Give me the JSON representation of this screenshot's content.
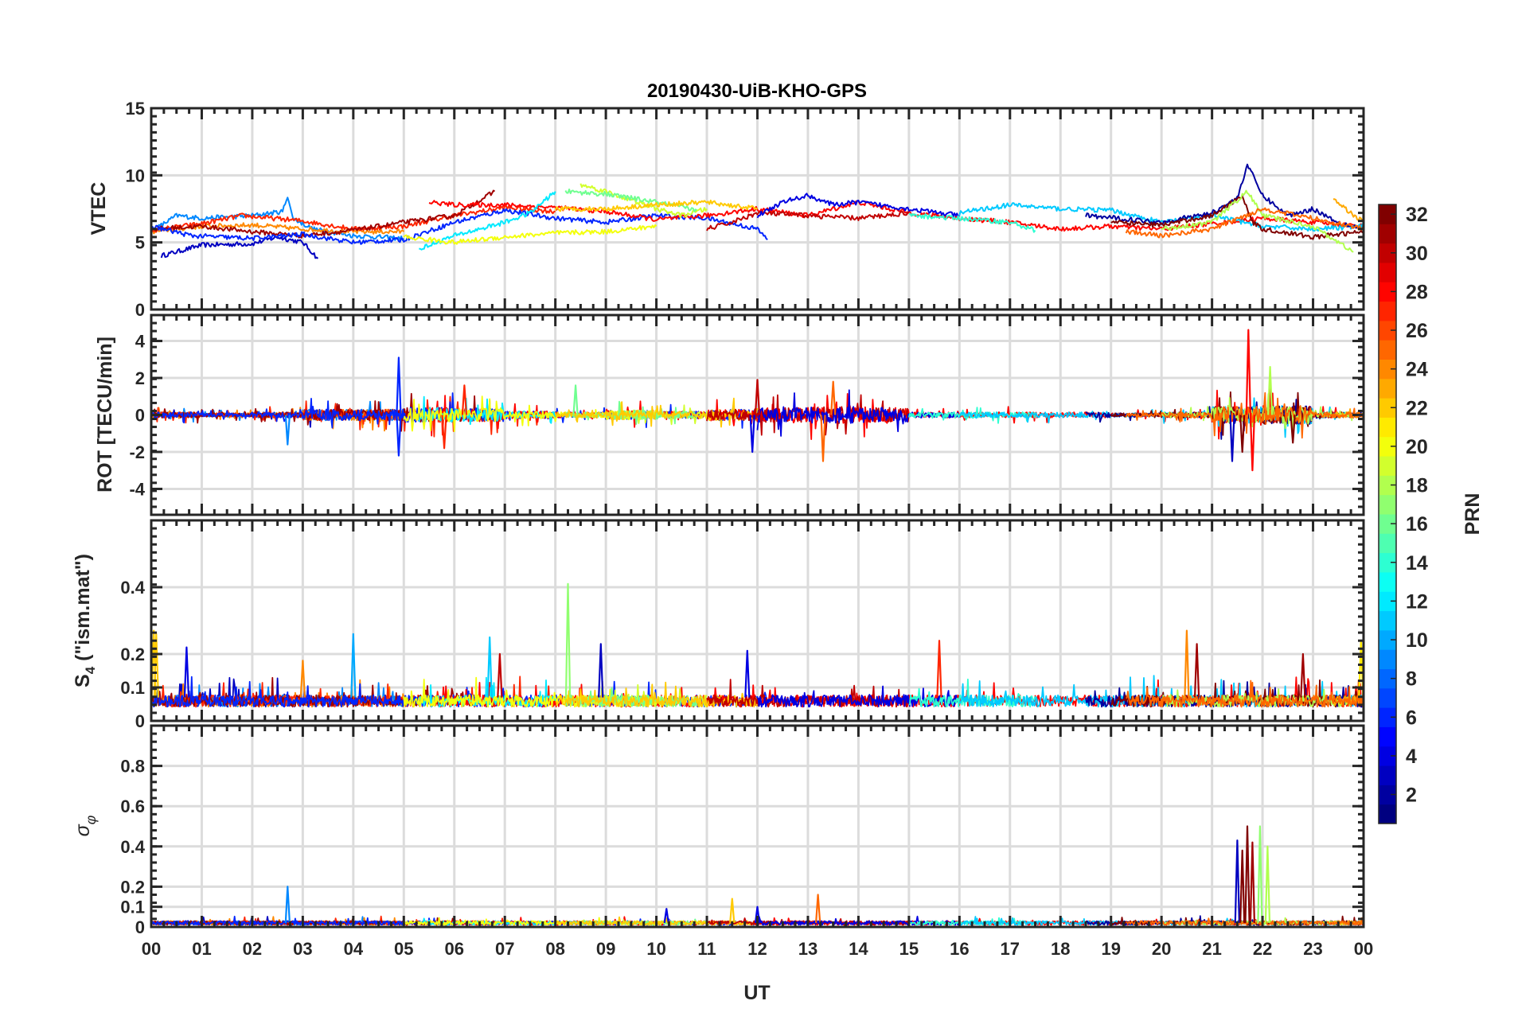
{
  "chart_data": {
    "type": "line",
    "title": "20190430-UiB-KHO-GPS",
    "xlabel": "UT",
    "xlim": [
      0,
      24
    ],
    "xtick_labels": [
      "00",
      "01",
      "02",
      "03",
      "04",
      "05",
      "06",
      "07",
      "08",
      "09",
      "10",
      "11",
      "12",
      "13",
      "14",
      "15",
      "16",
      "17",
      "18",
      "19",
      "20",
      "21",
      "22",
      "23",
      "00"
    ],
    "grid": true,
    "colorbar": {
      "label": "PRN",
      "range": [
        1,
        32
      ],
      "ticks": [
        "2",
        "4",
        "6",
        "8",
        "10",
        "12",
        "14",
        "16",
        "18",
        "20",
        "22",
        "24",
        "26",
        "28",
        "30",
        "32"
      ],
      "colormap": "jet",
      "placement": "right"
    },
    "panels": [
      {
        "id": "vtec",
        "ylabel": "VTEC",
        "ylim": [
          0,
          15
        ],
        "yticks": [
          0,
          5,
          10,
          15
        ],
        "ytick_labels": [
          "0",
          "5",
          "10",
          "15"
        ],
        "tracks": [
          {
            "prn": 3,
            "points": [
              [
                0.2,
                4.0
              ],
              [
                1,
                4.8
              ],
              [
                2,
                4.9
              ],
              [
                2.5,
                5.4
              ],
              [
                3,
                5.0
              ],
              [
                3.3,
                3.8
              ]
            ]
          },
          {
            "prn": 9,
            "points": [
              [
                0,
                5.8
              ],
              [
                0.5,
                7.0
              ],
              [
                1,
                6.8
              ],
              [
                2,
                7.0
              ],
              [
                2.6,
                7.3
              ],
              [
                2.7,
                8.5
              ],
              [
                2.8,
                6.8
              ],
              [
                3.2,
                6.0
              ],
              [
                4,
                5.5
              ],
              [
                5,
                5.3
              ]
            ]
          },
          {
            "prn": 24,
            "points": [
              [
                0,
                5.8
              ],
              [
                1,
                6.2
              ],
              [
                2,
                6.3
              ],
              [
                3,
                6.0
              ],
              [
                4,
                5.8
              ],
              [
                5,
                5.8
              ]
            ]
          },
          {
            "prn": 27,
            "points": [
              [
                0,
                5.9
              ],
              [
                1,
                6.4
              ],
              [
                1.8,
                7.0
              ],
              [
                3,
                6.6
              ],
              [
                4,
                6.0
              ],
              [
                5,
                6.2
              ],
              [
                6,
                7.0
              ],
              [
                7,
                7.6
              ],
              [
                8,
                7.3
              ]
            ]
          },
          {
            "prn": 31,
            "points": [
              [
                0,
                6.0
              ],
              [
                1,
                6.2
              ],
              [
                2,
                5.8
              ],
              [
                3,
                5.5
              ],
              [
                4,
                5.9
              ],
              [
                5,
                6.5
              ],
              [
                6,
                7.0
              ],
              [
                6.8,
                8.8
              ]
            ]
          },
          {
            "prn": 6,
            "points": [
              [
                0,
                6.2
              ],
              [
                0.8,
                5.5
              ],
              [
                2,
                5.3
              ],
              [
                3,
                5.6
              ],
              [
                4,
                5.0
              ],
              [
                5,
                5.2
              ],
              [
                6,
                6.5
              ],
              [
                7,
                7.4
              ],
              [
                8,
                6.8
              ],
              [
                9,
                6.5
              ],
              [
                10,
                7.0
              ],
              [
                11,
                6.8
              ],
              [
                12,
                6.0
              ],
              [
                12.2,
                5.2
              ]
            ]
          },
          {
            "prn": 28,
            "points": [
              [
                5.5,
                8.0
              ],
              [
                6,
                7.8
              ],
              [
                7,
                7.8
              ],
              [
                8,
                7.6
              ],
              [
                9,
                7.3
              ],
              [
                10,
                6.7
              ],
              [
                11,
                7.0
              ],
              [
                12,
                7.5
              ],
              [
                13,
                7.0
              ],
              [
                14,
                8.0
              ],
              [
                15,
                7.2
              ],
              [
                16,
                6.8
              ],
              [
                17,
                6.5
              ],
              [
                18,
                6.0
              ],
              [
                19,
                6.2
              ],
              [
                20,
                6.0
              ],
              [
                21,
                6.4
              ],
              [
                22,
                6.8
              ],
              [
                23,
                6.5
              ],
              [
                24,
                6.2
              ]
            ]
          },
          {
            "prn": 12,
            "points": [
              [
                5.3,
                4.5
              ],
              [
                6,
                5.5
              ],
              [
                7,
                6.5
              ],
              [
                7.5,
                7.2
              ],
              [
                8,
                8.8
              ]
            ]
          },
          {
            "prn": 20,
            "points": [
              [
                5,
                5.4
              ],
              [
                6,
                5.0
              ],
              [
                7,
                5.4
              ],
              [
                8,
                5.7
              ],
              [
                9,
                5.8
              ],
              [
                10,
                6.2
              ]
            ]
          },
          {
            "prn": 19,
            "points": [
              [
                8.5,
                9.3
              ],
              [
                9,
                8.8
              ],
              [
                10,
                7.5
              ],
              [
                10.5,
                7.0
              ],
              [
                11,
                7.5
              ]
            ]
          },
          {
            "prn": 16,
            "points": [
              [
                8.2,
                8.8
              ],
              [
                9,
                8.6
              ],
              [
                10,
                8.0
              ],
              [
                10.8,
                7.4
              ]
            ]
          },
          {
            "prn": 22,
            "points": [
              [
                8,
                7.5
              ],
              [
                9,
                7.5
              ],
              [
                10,
                7.8
              ],
              [
                11,
                8.0
              ],
              [
                12,
                7.5
              ]
            ]
          },
          {
            "prn": 30,
            "points": [
              [
                11,
                6.0
              ],
              [
                11.5,
                6.5
              ],
              [
                12,
                7.2
              ],
              [
                13,
                7.0
              ],
              [
                14,
                6.8
              ],
              [
                15,
                7.2
              ]
            ]
          },
          {
            "prn": 4,
            "points": [
              [
                12,
                7.0
              ],
              [
                12.5,
                8.0
              ],
              [
                13,
                8.5
              ],
              [
                13.5,
                7.8
              ],
              [
                14,
                8.0
              ],
              [
                15,
                7.5
              ],
              [
                16,
                7.0
              ]
            ]
          },
          {
            "prn": 14,
            "points": [
              [
                15,
                7.0
              ],
              [
                16,
                6.8
              ],
              [
                17,
                6.5
              ],
              [
                17.5,
                5.9
              ]
            ]
          },
          {
            "prn": 11,
            "points": [
              [
                16,
                7.2
              ],
              [
                17,
                7.8
              ],
              [
                18,
                7.5
              ],
              [
                19,
                7.4
              ],
              [
                20,
                6.5
              ],
              [
                21,
                7.0
              ],
              [
                22,
                6.2
              ],
              [
                23,
                6.0
              ],
              [
                24,
                6.2
              ]
            ]
          },
          {
            "prn": 2,
            "points": [
              [
                18.5,
                7.0
              ],
              [
                20,
                6.5
              ],
              [
                21,
                7.2
              ],
              [
                21.5,
                8.3
              ],
              [
                21.7,
                10.8
              ],
              [
                22,
                8.5
              ],
              [
                22.5,
                7.0
              ],
              [
                23,
                7.5
              ],
              [
                23.5,
                6.5
              ],
              [
                24,
                6.0
              ]
            ]
          },
          {
            "prn": 32,
            "points": [
              [
                19,
                6.5
              ],
              [
                20,
                6.3
              ],
              [
                21,
                7.0
              ],
              [
                21.6,
                8.5
              ],
              [
                21.8,
                6.5
              ],
              [
                22,
                6.0
              ],
              [
                23,
                5.4
              ],
              [
                24,
                5.8
              ]
            ]
          },
          {
            "prn": 18,
            "points": [
              [
                20,
                6.0
              ],
              [
                21,
                6.5
              ],
              [
                21.7,
                8.8
              ],
              [
                22,
                7.0
              ],
              [
                23,
                6.2
              ],
              [
                23.8,
                4.3
              ]
            ]
          },
          {
            "prn": 23,
            "points": [
              [
                23.4,
                8.2
              ],
              [
                24,
                6.5
              ]
            ]
          },
          {
            "prn": 25,
            "points": [
              [
                19.3,
                5.8
              ],
              [
                20,
                5.5
              ],
              [
                21,
                6.0
              ],
              [
                22,
                7.5
              ],
              [
                23,
                6.8
              ],
              [
                24,
                6.0
              ]
            ]
          }
        ]
      },
      {
        "id": "rot",
        "ylabel": "ROT [TECU/min]",
        "ylim": [
          -5.4,
          5.4
        ],
        "yticks": [
          -4,
          -2,
          0,
          2,
          4
        ],
        "ytick_labels": [
          "-4",
          "-2",
          "0",
          "2",
          "4"
        ],
        "hourly_amplitude": [
          0.3,
          0.2,
          0.3,
          0.6,
          0.6,
          0.8,
          0.7,
          0.4,
          0.3,
          0.5,
          0.4,
          0.6,
          0.8,
          0.9,
          0.8,
          0.3,
          0.3,
          0.3,
          0.3,
          0.2,
          0.3,
          0.9,
          1.0,
          0.3
        ],
        "spikes": [
          [
            4.9,
            3.1,
            6
          ],
          [
            4.9,
            -2.2,
            6
          ],
          [
            11.9,
            -2.0,
            4
          ],
          [
            13.3,
            -2.5,
            25
          ],
          [
            21.72,
            4.6,
            28
          ],
          [
            21.8,
            -3.0,
            28
          ],
          [
            22.15,
            2.6,
            18
          ],
          [
            21.4,
            -2.5,
            3
          ],
          [
            12.0,
            1.9,
            30
          ],
          [
            13.5,
            1.8,
            25
          ],
          [
            5.8,
            -1.8,
            27
          ],
          [
            6.2,
            1.6,
            27
          ],
          [
            8.4,
            1.6,
            16
          ],
          [
            2.7,
            -1.6,
            9
          ],
          [
            21.6,
            -2.0,
            32
          ],
          [
            22.6,
            -1.5,
            32
          ]
        ]
      },
      {
        "id": "s4",
        "ylabel_main": "S",
        "ylabel_sub": "4",
        "ylabel_rest": " (\"ism.mat\")",
        "ylim": [
          0,
          0.6
        ],
        "yticks": [
          0,
          0.1,
          0.2,
          0.4
        ],
        "ytick_labels": [
          "0",
          "0.1",
          "0.2",
          "0.4"
        ],
        "baseline": 0.07,
        "spikes": [
          [
            0.05,
            0.27,
            22
          ],
          [
            0.7,
            0.22,
            4
          ],
          [
            4.0,
            0.26,
            10
          ],
          [
            6.9,
            0.2,
            30
          ],
          [
            8.25,
            0.41,
            17
          ],
          [
            8.9,
            0.23,
            3
          ],
          [
            11.8,
            0.21,
            4
          ],
          [
            15.6,
            0.24,
            27
          ],
          [
            20.5,
            0.27,
            24
          ],
          [
            20.7,
            0.23,
            31
          ],
          [
            23.95,
            0.24,
            21
          ],
          [
            22.8,
            0.2,
            31
          ],
          [
            3.0,
            0.18,
            24
          ],
          [
            6.7,
            0.25,
            11
          ],
          [
            0.1,
            0.26,
            22
          ]
        ]
      },
      {
        "id": "sigma",
        "ylabel_main": "σ",
        "ylabel_sub": "φ",
        "ylim": [
          0,
          1.0
        ],
        "yticks": [
          0,
          0.1,
          0.2,
          0.4,
          0.6,
          0.8
        ],
        "ytick_labels": [
          "0",
          "0.1",
          "0.2",
          "0.4",
          "0.6",
          "0.8"
        ],
        "baseline": 0.02,
        "spikes": [
          [
            2.7,
            0.2,
            9
          ],
          [
            11.5,
            0.14,
            22
          ],
          [
            13.2,
            0.16,
            25
          ],
          [
            21.5,
            0.43,
            3
          ],
          [
            21.6,
            0.38,
            32
          ],
          [
            21.7,
            0.5,
            32
          ],
          [
            21.8,
            0.42,
            31
          ],
          [
            21.95,
            0.5,
            17
          ],
          [
            22.1,
            0.4,
            18
          ],
          [
            10.2,
            0.09,
            4
          ],
          [
            12.0,
            0.1,
            4
          ]
        ]
      }
    ]
  }
}
